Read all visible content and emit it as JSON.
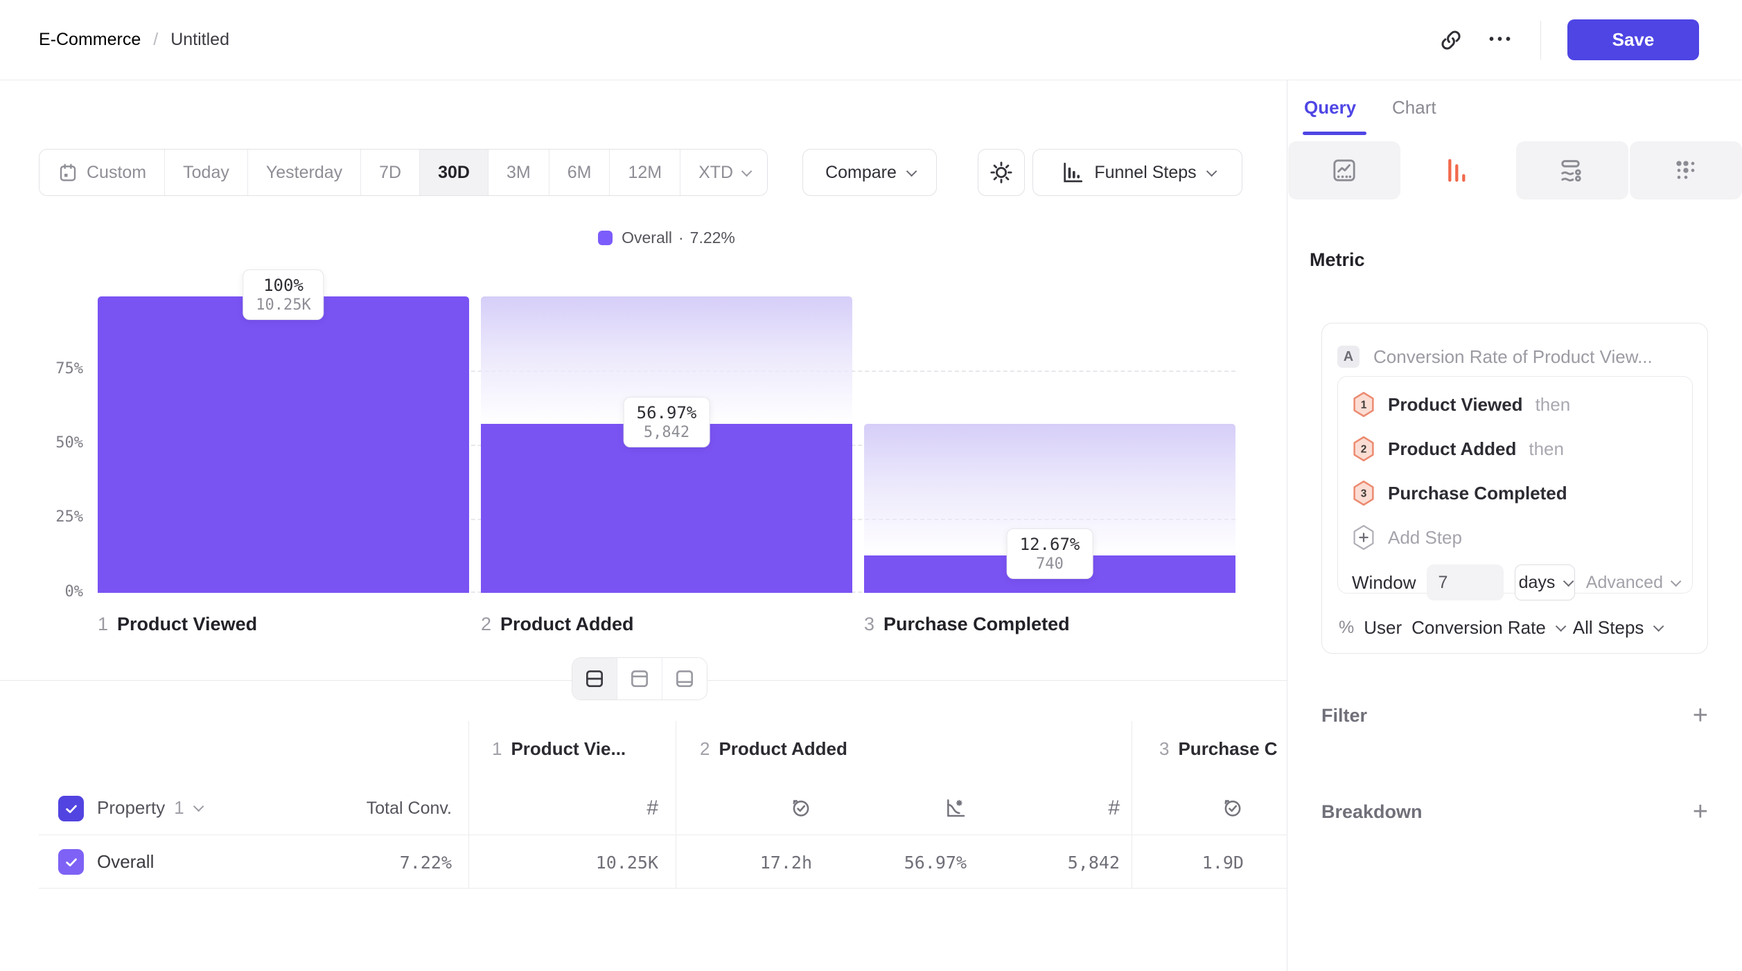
{
  "topbar": {
    "breadcrumb": {
      "parent": "E-Commerce",
      "separator": "/",
      "current": "Untitled"
    },
    "ellipsis": "•••",
    "save_label": "Save"
  },
  "toolbar": {
    "ranges": [
      {
        "label": "Custom"
      },
      {
        "label": "Today"
      },
      {
        "label": "Yesterday"
      },
      {
        "label": "7D"
      },
      {
        "label": "30D"
      },
      {
        "label": "3M"
      },
      {
        "label": "6M"
      },
      {
        "label": "12M"
      },
      {
        "label": "XTD"
      }
    ],
    "selected_range": "30D",
    "compare_label": "Compare",
    "view_selector_label": "Funnel Steps"
  },
  "legend": {
    "series_label": "Overall",
    "separator": "·",
    "value": "7.22%",
    "swatch_color": "#7c5cfa"
  },
  "chart_data": {
    "type": "bar",
    "subtype": "funnel-steps",
    "categories": [
      "Product Viewed",
      "Product Added",
      "Purchase Completed"
    ],
    "category_numbers": [
      "1",
      "2",
      "3"
    ],
    "series": [
      {
        "name": "Overall",
        "conversion_pct": [
          100,
          56.97,
          12.67
        ],
        "counts": [
          10250,
          5842,
          740
        ],
        "pct_labels": [
          "100%",
          "56.97%",
          "12.67%"
        ],
        "count_labels": [
          "10.25K",
          "5,842",
          "740"
        ]
      }
    ],
    "overall_conversion": "7.22%",
    "y_ticks": [
      "0%",
      "25%",
      "50%",
      "75%"
    ],
    "ylim": [
      0,
      100
    ],
    "grid": "dashed-horizontal",
    "legend_position": "top-center",
    "bar_color": "#7a53f3"
  },
  "table": {
    "property_header": {
      "label": "Property",
      "index": "1"
    },
    "total_conv_header": "Total Conv.",
    "step_headers": [
      {
        "num": "1",
        "name": "Product Vie..."
      },
      {
        "num": "2",
        "name": "Product Added"
      },
      {
        "num": "3",
        "name": "Purchase C"
      }
    ],
    "row": {
      "name": "Overall",
      "total_conv": "7.22%",
      "step1_count": "10.25K",
      "step2_avg_time": "17.2h",
      "step2_conv_rate": "56.97%",
      "step2_count": "5,842",
      "step3_avg_time": "1.9D"
    }
  },
  "panel": {
    "tabs": [
      {
        "label": "Query"
      },
      {
        "label": "Chart"
      }
    ],
    "active_tab": "Query",
    "metric": {
      "heading": "Metric",
      "query_letter": "A",
      "query_title": "Conversion Rate of Product View...",
      "steps": [
        {
          "num": "1",
          "name": "Product Viewed",
          "suffix": "then"
        },
        {
          "num": "2",
          "name": "Product Added",
          "suffix": "then"
        },
        {
          "num": "3",
          "name": "Purchase Completed",
          "suffix": ""
        }
      ],
      "add_step_label": "Add Step",
      "window_label": "Window",
      "window_value": "7",
      "window_unit": "days",
      "advanced_label": "Advanced",
      "measure_symbol": "%",
      "measure_entity": "User",
      "measure_type": "Conversion Rate",
      "measure_scope": "All Steps"
    },
    "filter_label": "Filter",
    "breakdown_label": "Breakdown",
    "add_symbol": "+"
  },
  "colors": {
    "accent": "#4f46e5",
    "bar": "#7a53f3",
    "funnel_tab_icon": "#f2694c",
    "step_badge_fill": "#fbddd4",
    "step_badge_stroke": "#ec8b71"
  }
}
